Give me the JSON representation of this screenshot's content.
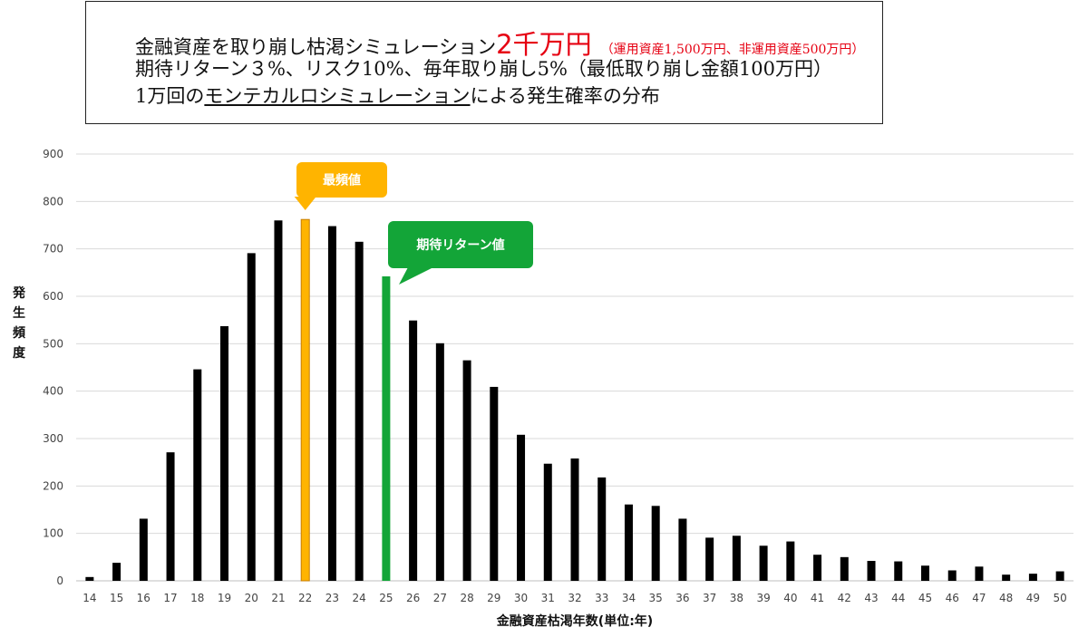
{
  "title": {
    "line1_pre": "金融資産を取り崩し枯渇シミュレーション",
    "line1_amount": "2千万円",
    "line1_note": "（運用資産1,500万円、非運用資産500万円）",
    "line2": "期待リターン３%、リスク10%、毎年取り崩し5%（最低取り崩し金額100万円）",
    "line3_pre": "1万回の",
    "line3_underlined": "モンテカルロシミュレーション",
    "line3_post": "による発生確率の分布"
  },
  "colors": {
    "bar": "#000000",
    "mode": "#ffb400",
    "expected": "#13a538",
    "grid": "#d9d9d9",
    "title_accent": "#e60012"
  },
  "chart_data": {
    "type": "bar",
    "xlabel": "金融資産枯渇年数(単位:年)",
    "ylabel": "発生頻度",
    "ylim": [
      0,
      900
    ],
    "yticks": [
      0,
      100,
      200,
      300,
      400,
      500,
      600,
      700,
      800,
      900
    ],
    "grid": true,
    "categories": [
      "14",
      "15",
      "16",
      "17",
      "18",
      "19",
      "20",
      "21",
      "22",
      "23",
      "24",
      "25",
      "26",
      "27",
      "28",
      "29",
      "30",
      "31",
      "32",
      "33",
      "34",
      "35",
      "36",
      "37",
      "38",
      "39",
      "40",
      "41",
      "42",
      "43",
      "44",
      "45",
      "46",
      "47",
      "48",
      "49",
      "50"
    ],
    "values": [
      8,
      38,
      131,
      271,
      446,
      537,
      691,
      760,
      762,
      748,
      715,
      642,
      549,
      501,
      465,
      409,
      308,
      247,
      258,
      218,
      161,
      158,
      131,
      91,
      95,
      74,
      83,
      55,
      50,
      42,
      41,
      32,
      22,
      30,
      13,
      15,
      20
    ],
    "highlights": [
      {
        "category": "22",
        "label": "最頻値",
        "color": "#ffb400"
      },
      {
        "category": "25",
        "label": "期待リターン値",
        "color": "#13a538"
      }
    ]
  }
}
